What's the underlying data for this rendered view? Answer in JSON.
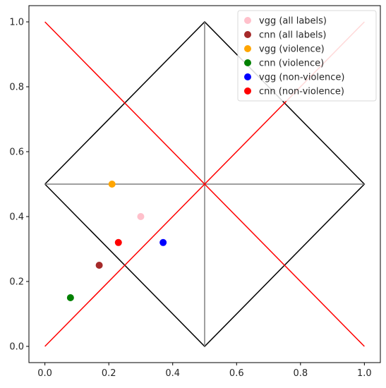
{
  "chart_data": {
    "type": "scatter",
    "title": "",
    "xlabel": "",
    "ylabel": "",
    "xlim": [
      -0.05,
      1.05
    ],
    "ylim": [
      -0.05,
      1.05
    ],
    "grid": false,
    "legend_position": "top-right",
    "x_ticks": [
      0.0,
      0.2,
      0.4,
      0.6,
      0.8,
      1.0
    ],
    "x_tick_labels": [
      "0.0",
      "0.2",
      "0.4",
      "0.6",
      "0.8",
      "1.0"
    ],
    "y_ticks": [
      0.0,
      0.2,
      0.4,
      0.6,
      0.8,
      1.0
    ],
    "y_tick_labels": [
      "0.0",
      "0.2",
      "0.4",
      "0.6",
      "0.8",
      "1.0"
    ],
    "reference_lines": [
      {
        "color": "#000000",
        "points": [
          [
            0,
            0.5
          ],
          [
            0.5,
            1
          ],
          [
            1,
            0.5
          ],
          [
            0.5,
            0
          ],
          [
            0,
            0.5
          ]
        ]
      },
      {
        "color": "#808080",
        "points": [
          [
            0.5,
            0
          ],
          [
            0.5,
            1
          ]
        ]
      },
      {
        "color": "#808080",
        "points": [
          [
            0,
            0.5
          ],
          [
            1,
            0.5
          ]
        ]
      },
      {
        "color": "#ff0000",
        "points": [
          [
            0,
            0
          ],
          [
            1,
            1
          ]
        ]
      },
      {
        "color": "#ff0000",
        "points": [
          [
            0,
            1
          ],
          [
            1,
            0
          ]
        ]
      }
    ],
    "series": [
      {
        "name": "vgg (all labels)",
        "color": "#ffc0cb",
        "x": [
          0.3
        ],
        "y": [
          0.4
        ]
      },
      {
        "name": "cnn (all labels)",
        "color": "#a52a2a",
        "x": [
          0.17
        ],
        "y": [
          0.25
        ]
      },
      {
        "name": "vgg (violence)",
        "color": "#ffa500",
        "x": [
          0.21
        ],
        "y": [
          0.5
        ]
      },
      {
        "name": "cnn (violence)",
        "color": "#008000",
        "x": [
          0.08
        ],
        "y": [
          0.15
        ]
      },
      {
        "name": "vgg (non-violence)",
        "color": "#0000ff",
        "x": [
          0.37
        ],
        "y": [
          0.32
        ]
      },
      {
        "name": "cnn (non-violence)",
        "color": "#ff0000",
        "x": [
          0.23
        ],
        "y": [
          0.32
        ]
      }
    ]
  }
}
